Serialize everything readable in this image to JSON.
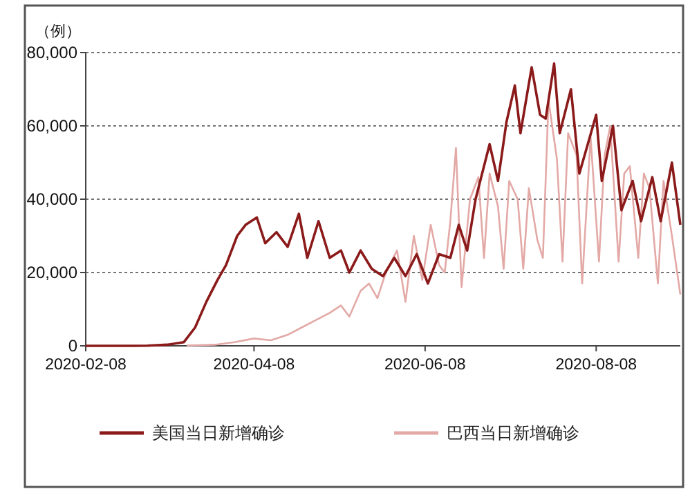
{
  "chart_data": {
    "type": "line",
    "ylabel": "（例）",
    "xlim": [
      "2020-02-08",
      "2020-09-07"
    ],
    "xticks": [
      {
        "value": "2020-02-08",
        "label": "2020-02-08"
      },
      {
        "value": "2020-04-08",
        "label": "2020-04-08"
      },
      {
        "value": "2020-06-08",
        "label": "2020-06-08"
      },
      {
        "value": "2020-08-08",
        "label": "2020-08-08"
      }
    ],
    "ylim": [
      0,
      80000
    ],
    "yticks": [
      {
        "value": 0,
        "label": "0"
      },
      {
        "value": 20000,
        "label": "20,000"
      },
      {
        "value": 40000,
        "label": "40,000"
      },
      {
        "value": 60000,
        "label": "60,000"
      },
      {
        "value": 80000,
        "label": "80,000"
      }
    ],
    "grid": "y",
    "legend": "bottom",
    "line_style": "solid",
    "marker": "none",
    "series": [
      {
        "name": "巴西当日新增确诊",
        "color": "#e3a9a6",
        "x": [
          "2020-03-15",
          "2020-03-25",
          "2020-04-01",
          "2020-04-08",
          "2020-04-14",
          "2020-04-20",
          "2020-04-25",
          "2020-04-30",
          "2020-05-05",
          "2020-05-09",
          "2020-05-12",
          "2020-05-16",
          "2020-05-19",
          "2020-05-22",
          "2020-05-25",
          "2020-05-29",
          "2020-06-01",
          "2020-06-04",
          "2020-06-07",
          "2020-06-10",
          "2020-06-13",
          "2020-06-15",
          "2020-06-17",
          "2020-06-19",
          "2020-06-21",
          "2020-06-24",
          "2020-06-27",
          "2020-06-29",
          "2020-07-01",
          "2020-07-04",
          "2020-07-06",
          "2020-07-08",
          "2020-07-11",
          "2020-07-13",
          "2020-07-15",
          "2020-07-18",
          "2020-07-20",
          "2020-07-22",
          "2020-07-25",
          "2020-07-27",
          "2020-07-29",
          "2020-08-01",
          "2020-08-03",
          "2020-08-06",
          "2020-08-09",
          "2020-08-11",
          "2020-08-13",
          "2020-08-16",
          "2020-08-18",
          "2020-08-20",
          "2020-08-23",
          "2020-08-25",
          "2020-08-27",
          "2020-08-30",
          "2020-09-01",
          "2020-09-04",
          "2020-09-07"
        ],
        "values": [
          100,
          300,
          1000,
          2000,
          1500,
          3000,
          5000,
          7000,
          9000,
          11000,
          8000,
          15000,
          17000,
          13000,
          20000,
          26000,
          12000,
          30000,
          18000,
          33000,
          22000,
          20000,
          34000,
          54000,
          16000,
          40000,
          46000,
          24000,
          47000,
          38000,
          21000,
          45000,
          40000,
          21000,
          43000,
          29000,
          24000,
          67000,
          51000,
          23000,
          58000,
          52000,
          17000,
          57000,
          23000,
          52000,
          60000,
          23000,
          47000,
          49000,
          24000,
          47000,
          43000,
          17000,
          45000,
          30000,
          14000
        ]
      },
      {
        "name": "美国当日新增确诊",
        "color": "#8b1a1a",
        "x": [
          "2020-02-08",
          "2020-02-25",
          "2020-03-01",
          "2020-03-08",
          "2020-03-14",
          "2020-03-18",
          "2020-03-22",
          "2020-03-26",
          "2020-03-29",
          "2020-04-02",
          "2020-04-05",
          "2020-04-09",
          "2020-04-12",
          "2020-04-16",
          "2020-04-20",
          "2020-04-24",
          "2020-04-27",
          "2020-05-01",
          "2020-05-05",
          "2020-05-09",
          "2020-05-12",
          "2020-05-16",
          "2020-05-20",
          "2020-05-24",
          "2020-05-28",
          "2020-06-01",
          "2020-06-05",
          "2020-06-09",
          "2020-06-13",
          "2020-06-17",
          "2020-06-20",
          "2020-06-23",
          "2020-06-26",
          "2020-07-01",
          "2020-07-04",
          "2020-07-07",
          "2020-07-10",
          "2020-07-12",
          "2020-07-16",
          "2020-07-19",
          "2020-07-21",
          "2020-07-24",
          "2020-07-26",
          "2020-07-30",
          "2020-08-02",
          "2020-08-05",
          "2020-08-08",
          "2020-08-10",
          "2020-08-14",
          "2020-08-17",
          "2020-08-21",
          "2020-08-24",
          "2020-08-28",
          "2020-08-31",
          "2020-09-04",
          "2020-09-07"
        ],
        "values": [
          0,
          0,
          50,
          300,
          1000,
          5000,
          12000,
          18000,
          22000,
          30000,
          33000,
          35000,
          28000,
          31000,
          27000,
          36000,
          24000,
          34000,
          24000,
          26000,
          20000,
          26000,
          21000,
          19000,
          24000,
          19000,
          25000,
          17000,
          25000,
          24000,
          33000,
          26000,
          40000,
          55000,
          45000,
          61000,
          71000,
          58000,
          76000,
          63000,
          62000,
          77000,
          58000,
          70000,
          47000,
          55000,
          63000,
          45000,
          60000,
          37000,
          45000,
          34000,
          46000,
          34000,
          50000,
          33000
        ]
      }
    ]
  }
}
